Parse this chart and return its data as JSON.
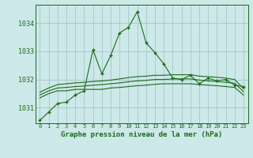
{
  "title": "Graphe pression niveau de la mer (hPa)",
  "background_color": "#cde8e8",
  "grid_color": "#aacccc",
  "line_color": "#1a6b1a",
  "x_labels": [
    "0",
    "1",
    "2",
    "3",
    "4",
    "5",
    "6",
    "7",
    "8",
    "9",
    "10",
    "11",
    "12",
    "13",
    "14",
    "15",
    "16",
    "17",
    "18",
    "19",
    "20",
    "21",
    "22",
    "23"
  ],
  "xlim": [
    -0.5,
    23.5
  ],
  "ylim": [
    1030.45,
    1034.65
  ],
  "yticks": [
    1031,
    1032,
    1033,
    1034
  ],
  "main_line": [
    1030.55,
    1030.85,
    1031.15,
    1031.2,
    1031.45,
    1031.6,
    1033.05,
    1032.2,
    1032.85,
    1033.65,
    1033.85,
    1034.4,
    1033.3,
    1032.95,
    1032.55,
    1032.05,
    1032.0,
    1032.15,
    1031.85,
    1032.05,
    1031.95,
    1032.0,
    1031.8,
    1031.75
  ],
  "line2": [
    1031.35,
    1031.5,
    1031.6,
    1031.6,
    1031.65,
    1031.65,
    1031.65,
    1031.65,
    1031.7,
    1031.72,
    1031.75,
    1031.78,
    1031.8,
    1031.83,
    1031.85,
    1031.85,
    1031.85,
    1031.85,
    1031.82,
    1031.8,
    1031.78,
    1031.75,
    1031.72,
    1031.45
  ],
  "line3": [
    1031.45,
    1031.6,
    1031.7,
    1031.72,
    1031.75,
    1031.77,
    1031.8,
    1031.82,
    1031.85,
    1031.88,
    1031.92,
    1031.95,
    1031.97,
    1032.0,
    1032.0,
    1032.02,
    1032.02,
    1032.02,
    1031.98,
    1031.95,
    1031.93,
    1031.9,
    1031.87,
    1031.57
  ],
  "line4": [
    1031.55,
    1031.7,
    1031.82,
    1031.85,
    1031.88,
    1031.9,
    1031.93,
    1031.95,
    1031.98,
    1032.02,
    1032.07,
    1032.1,
    1032.12,
    1032.15,
    1032.15,
    1032.17,
    1032.17,
    1032.17,
    1032.12,
    1032.1,
    1032.08,
    1032.05,
    1032.0,
    1031.68
  ]
}
